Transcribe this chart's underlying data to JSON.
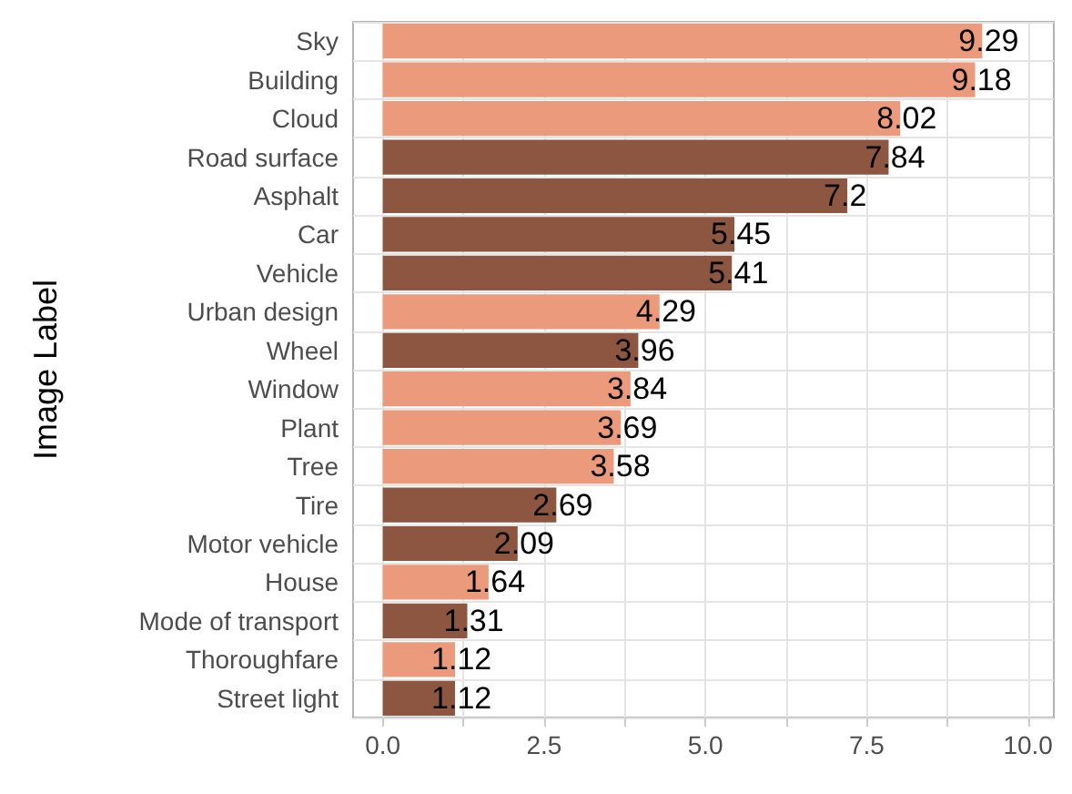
{
  "chart_data": {
    "type": "bar",
    "orientation": "horizontal",
    "ylabel": "Image Label",
    "categories": [
      "Sky",
      "Building",
      "Cloud",
      "Road surface",
      "Asphalt",
      "Car",
      "Vehicle",
      "Urban design",
      "Wheel",
      "Window",
      "Plant",
      "Tree",
      "Tire",
      "Motor vehicle",
      "House",
      "Mode of transport",
      "Thoroughfare",
      "Street light"
    ],
    "values": [
      9.29,
      9.18,
      8.02,
      7.84,
      7.2,
      5.45,
      5.41,
      4.29,
      3.96,
      3.84,
      3.69,
      3.58,
      2.69,
      2.09,
      1.64,
      1.31,
      1.12,
      1.12
    ],
    "colors": [
      "#eb9a7c",
      "#eb9a7c",
      "#eb9a7c",
      "#8c5640",
      "#8c5640",
      "#8c5640",
      "#8c5640",
      "#eb9a7c",
      "#8c5640",
      "#eb9a7c",
      "#eb9a7c",
      "#eb9a7c",
      "#8c5640",
      "#8c5640",
      "#eb9a7c",
      "#8c5640",
      "#eb9a7c",
      "#8c5640"
    ],
    "xlim": [
      -0.46,
      10.4
    ],
    "xticks": [
      {
        "value": 0,
        "label": "0.0"
      },
      {
        "value": 1.25,
        "label": null
      },
      {
        "value": 2.5,
        "label": "2.5"
      },
      {
        "value": 3.75,
        "label": null
      },
      {
        "value": 5,
        "label": "5.0"
      },
      {
        "value": 6.25,
        "label": null
      },
      {
        "value": 7.5,
        "label": "7.5"
      },
      {
        "value": 8.75,
        "label": null
      },
      {
        "value": 10,
        "label": "10.0"
      }
    ],
    "data_labels": true,
    "grid": true
  }
}
